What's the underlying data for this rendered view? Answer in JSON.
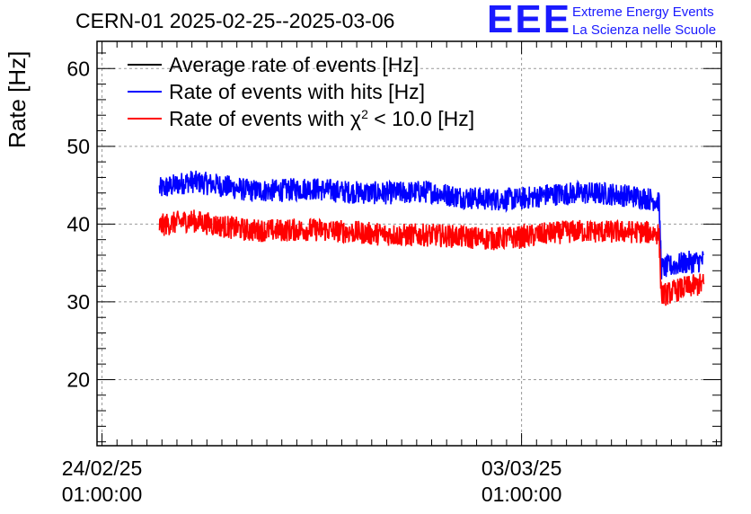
{
  "chart_data": {
    "type": "line",
    "title": "CERN-01 2025-02-25--2025-03-06",
    "ylabel": "Rate [Hz]",
    "xlabel": "",
    "ylim": [
      11.5,
      63.5
    ],
    "y_ticks": [
      20,
      30,
      40,
      50,
      60
    ],
    "x_ticks": [
      {
        "date": "24/02/25",
        "time": "01:00:00",
        "x": "2025-02-24 01:00:00"
      },
      {
        "date": "03/03/25",
        "time": "01:00:00",
        "x": "2025-03-03 01:00:00"
      }
    ],
    "xlim": [
      "2025-02-23 23:00:00",
      "2025-03-06 09:00:00"
    ],
    "grid": true,
    "legend": "top-left",
    "series": [
      {
        "name": "Average rate of events [Hz]",
        "color": "#000000",
        "x": [],
        "values": []
      },
      {
        "name": "Rate of events with hits [Hz]",
        "color": "#0000ff",
        "x": [
          "2025-02-25 00:00:00",
          "2025-02-25 12:00:00",
          "2025-02-26 00:00:00",
          "2025-02-26 12:00:00",
          "2025-02-27 00:00:00",
          "2025-02-27 12:00:00",
          "2025-02-28 00:00:00",
          "2025-02-28 12:00:00",
          "2025-03-01 00:00:00",
          "2025-03-01 12:00:00",
          "2025-03-02 00:00:00",
          "2025-03-02 12:00:00",
          "2025-03-03 00:00:00",
          "2025-03-03 12:00:00",
          "2025-03-04 00:00:00",
          "2025-03-04 12:00:00",
          "2025-03-05 00:00:00",
          "2025-03-05 08:00:00",
          "2025-03-05 09:00:00",
          "2025-03-05 18:00:00",
          "2025-03-06 02:00:00"
        ],
        "values": [
          44.5,
          45.5,
          45.0,
          44.3,
          44.3,
          44.6,
          44.2,
          44.0,
          44.0,
          44.2,
          43.5,
          43.2,
          43.2,
          43.8,
          44.0,
          43.9,
          43.5,
          43.0,
          34.3,
          35.0,
          35.3
        ]
      },
      {
        "name": "Rate of events with χ² < 10.0 [Hz]",
        "name_parts": {
          "main": "Rate of events with ",
          "chi": "χ",
          "sup": "2",
          "rest": " < 10.0 [Hz]"
        },
        "color": "#ff0000",
        "x": [
          "2025-02-25 00:00:00",
          "2025-02-25 12:00:00",
          "2025-02-26 00:00:00",
          "2025-02-26 12:00:00",
          "2025-02-27 00:00:00",
          "2025-02-27 12:00:00",
          "2025-02-28 00:00:00",
          "2025-02-28 12:00:00",
          "2025-03-01 00:00:00",
          "2025-03-01 12:00:00",
          "2025-03-02 00:00:00",
          "2025-03-02 12:00:00",
          "2025-03-03 00:00:00",
          "2025-03-03 12:00:00",
          "2025-03-04 00:00:00",
          "2025-03-04 12:00:00",
          "2025-03-05 00:00:00",
          "2025-03-05 08:00:00",
          "2025-03-05 09:00:00",
          "2025-03-05 18:00:00",
          "2025-03-06 02:00:00"
        ],
        "values": [
          39.8,
          40.5,
          39.8,
          39.2,
          39.2,
          39.3,
          39.1,
          38.8,
          38.6,
          38.6,
          38.4,
          38.1,
          38.3,
          38.8,
          39.1,
          39.0,
          39.0,
          38.8,
          30.8,
          31.8,
          32.3
        ]
      }
    ]
  },
  "logo": {
    "mark": "EEE",
    "line1": "Extreme Energy Events",
    "line2": "La Scienza nelle Scuole"
  }
}
